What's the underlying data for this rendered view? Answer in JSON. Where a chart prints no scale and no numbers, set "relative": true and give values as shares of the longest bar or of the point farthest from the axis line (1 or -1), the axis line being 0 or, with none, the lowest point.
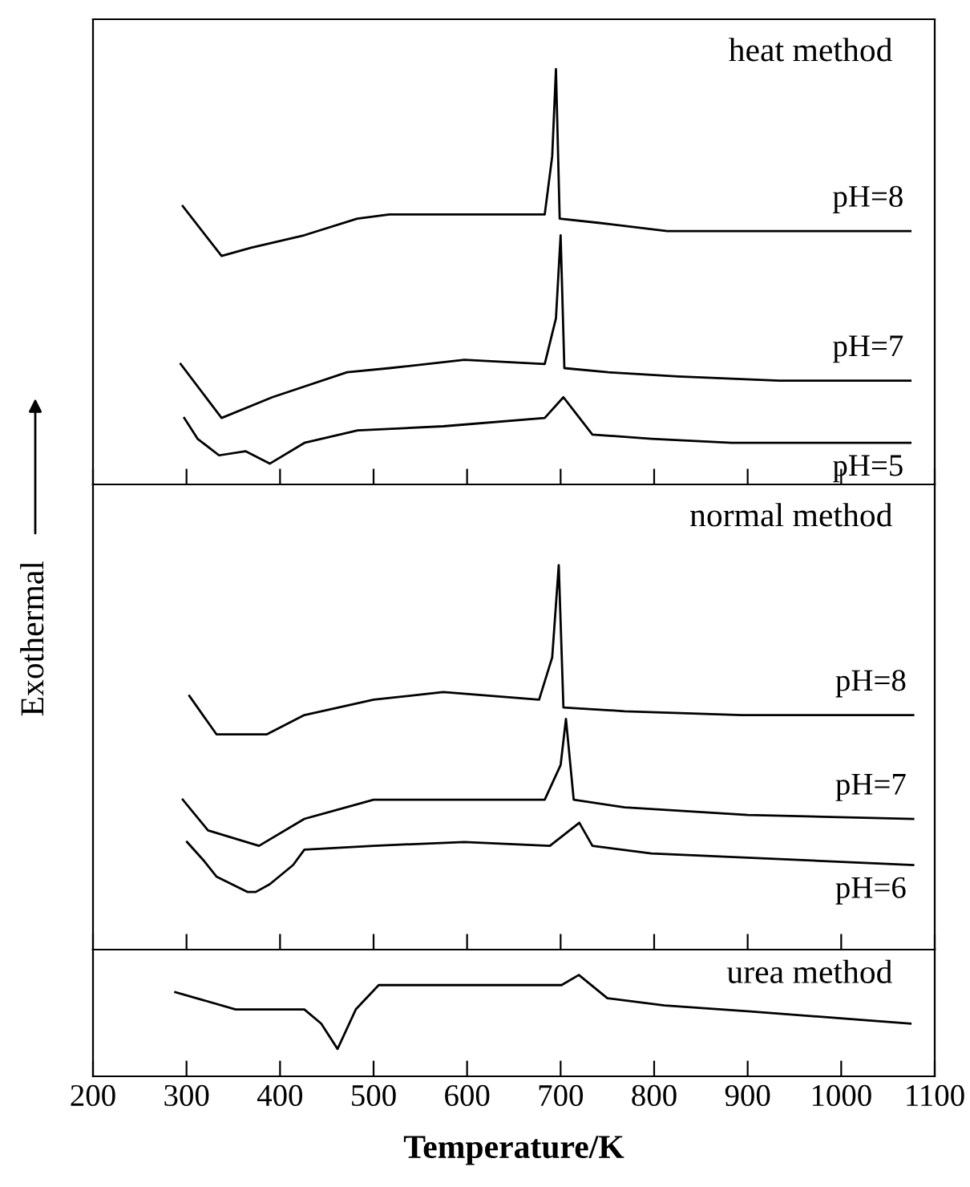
{
  "chart_data": [
    {
      "type": "line",
      "relative": true,
      "title": "heat method",
      "ylabel": "Exothermal",
      "xlim": [
        200,
        1100
      ],
      "xticks": [
        200,
        300,
        400,
        500,
        600,
        700,
        800,
        900,
        1000,
        1100
      ],
      "tick_labels": false,
      "grid": false,
      "legend": false,
      "series": [
        {
          "name": "pH=8",
          "color": "#000000",
          "x": [
            296,
            337.5,
            369,
            426,
            482.5,
            517,
            683,
            691,
            695,
            699,
            740,
            814,
            883,
            1074
          ],
          "values": [
            0.67,
            0.55,
            0.57,
            0.6,
            0.64,
            0.65,
            0.65,
            0.79,
            1.0,
            0.64,
            0.63,
            0.61,
            0.61,
            0.61
          ]
        },
        {
          "name": "pH=7",
          "color": "#000000",
          "x": [
            293.7,
            337.5,
            391.8,
            471.7,
            517,
            597,
            683,
            695,
            700,
            704,
            751,
            825.5,
            934,
            1074
          ],
          "values": [
            0.29,
            0.16,
            0.21,
            0.27,
            0.28,
            0.3,
            0.29,
            0.4,
            0.6,
            0.28,
            0.27,
            0.26,
            0.25,
            0.25
          ]
        },
        {
          "name": "pH=5",
          "color": "#000000",
          "x": [
            297.6,
            311.8,
            334.8,
            363,
            389,
            426,
            483,
            574.5,
            683,
            703,
            734,
            797,
            883,
            1074
          ],
          "values": [
            0.16,
            0.11,
            0.07,
            0.08,
            0.05,
            0.1,
            0.13,
            0.14,
            0.16,
            0.21,
            0.12,
            0.11,
            0.1,
            0.1
          ]
        }
      ]
    },
    {
      "type": "line",
      "relative": true,
      "title": "normal method",
      "xlim": [
        200,
        1100
      ],
      "xticks": [
        200,
        300,
        400,
        500,
        600,
        700,
        800,
        900,
        1000,
        1100
      ],
      "tick_labels": false,
      "grid": false,
      "legend": false,
      "series": [
        {
          "name": "pH=8",
          "color": "#000000",
          "x": [
            303,
            332,
            386,
            426,
            500,
            574.5,
            677,
            691,
            698,
            703,
            768.5,
            894,
            1077
          ],
          "values": [
            0.66,
            0.56,
            0.56,
            0.61,
            0.65,
            0.67,
            0.65,
            0.76,
            1.0,
            0.63,
            0.62,
            0.61,
            0.61
          ]
        },
        {
          "name": "pH=7",
          "color": "#000000",
          "x": [
            296,
            323,
            377.5,
            426,
            500,
            597,
            683,
            700,
            705.7,
            714,
            768.5,
            900,
            1077
          ],
          "values": [
            0.39,
            0.31,
            0.27,
            0.34,
            0.39,
            0.39,
            0.39,
            0.48,
            0.6,
            0.39,
            0.37,
            0.35,
            0.34
          ]
        },
        {
          "name": "pH=6",
          "color": "#000000",
          "x": [
            300.5,
            319,
            332,
            365,
            374,
            389,
            414,
            426,
            500,
            597,
            688.5,
            720,
            734,
            797,
            1077
          ],
          "values": [
            0.28,
            0.23,
            0.19,
            0.15,
            0.15,
            0.17,
            0.22,
            0.26,
            0.27,
            0.28,
            0.27,
            0.33,
            0.27,
            0.25,
            0.22
          ]
        }
      ]
    },
    {
      "type": "line",
      "relative": true,
      "title": "urea method",
      "xlabel": "Temperature/K",
      "xlim": [
        200,
        1100
      ],
      "xticks": [
        200,
        300,
        400,
        500,
        600,
        700,
        800,
        900,
        1000,
        1100
      ],
      "tick_labels": "x",
      "grid": false,
      "legend": false,
      "series": [
        {
          "color": "#000000",
          "x": [
            288,
            352.5,
            426,
            444,
            461.5,
            481,
            505.5,
            701,
            719.5,
            750,
            811,
            903,
            1074
          ],
          "values": [
            0.83,
            0.66,
            0.66,
            0.52,
            0.27,
            0.66,
            0.9,
            0.9,
            1.0,
            0.77,
            0.7,
            0.64,
            0.52
          ]
        }
      ]
    }
  ]
}
